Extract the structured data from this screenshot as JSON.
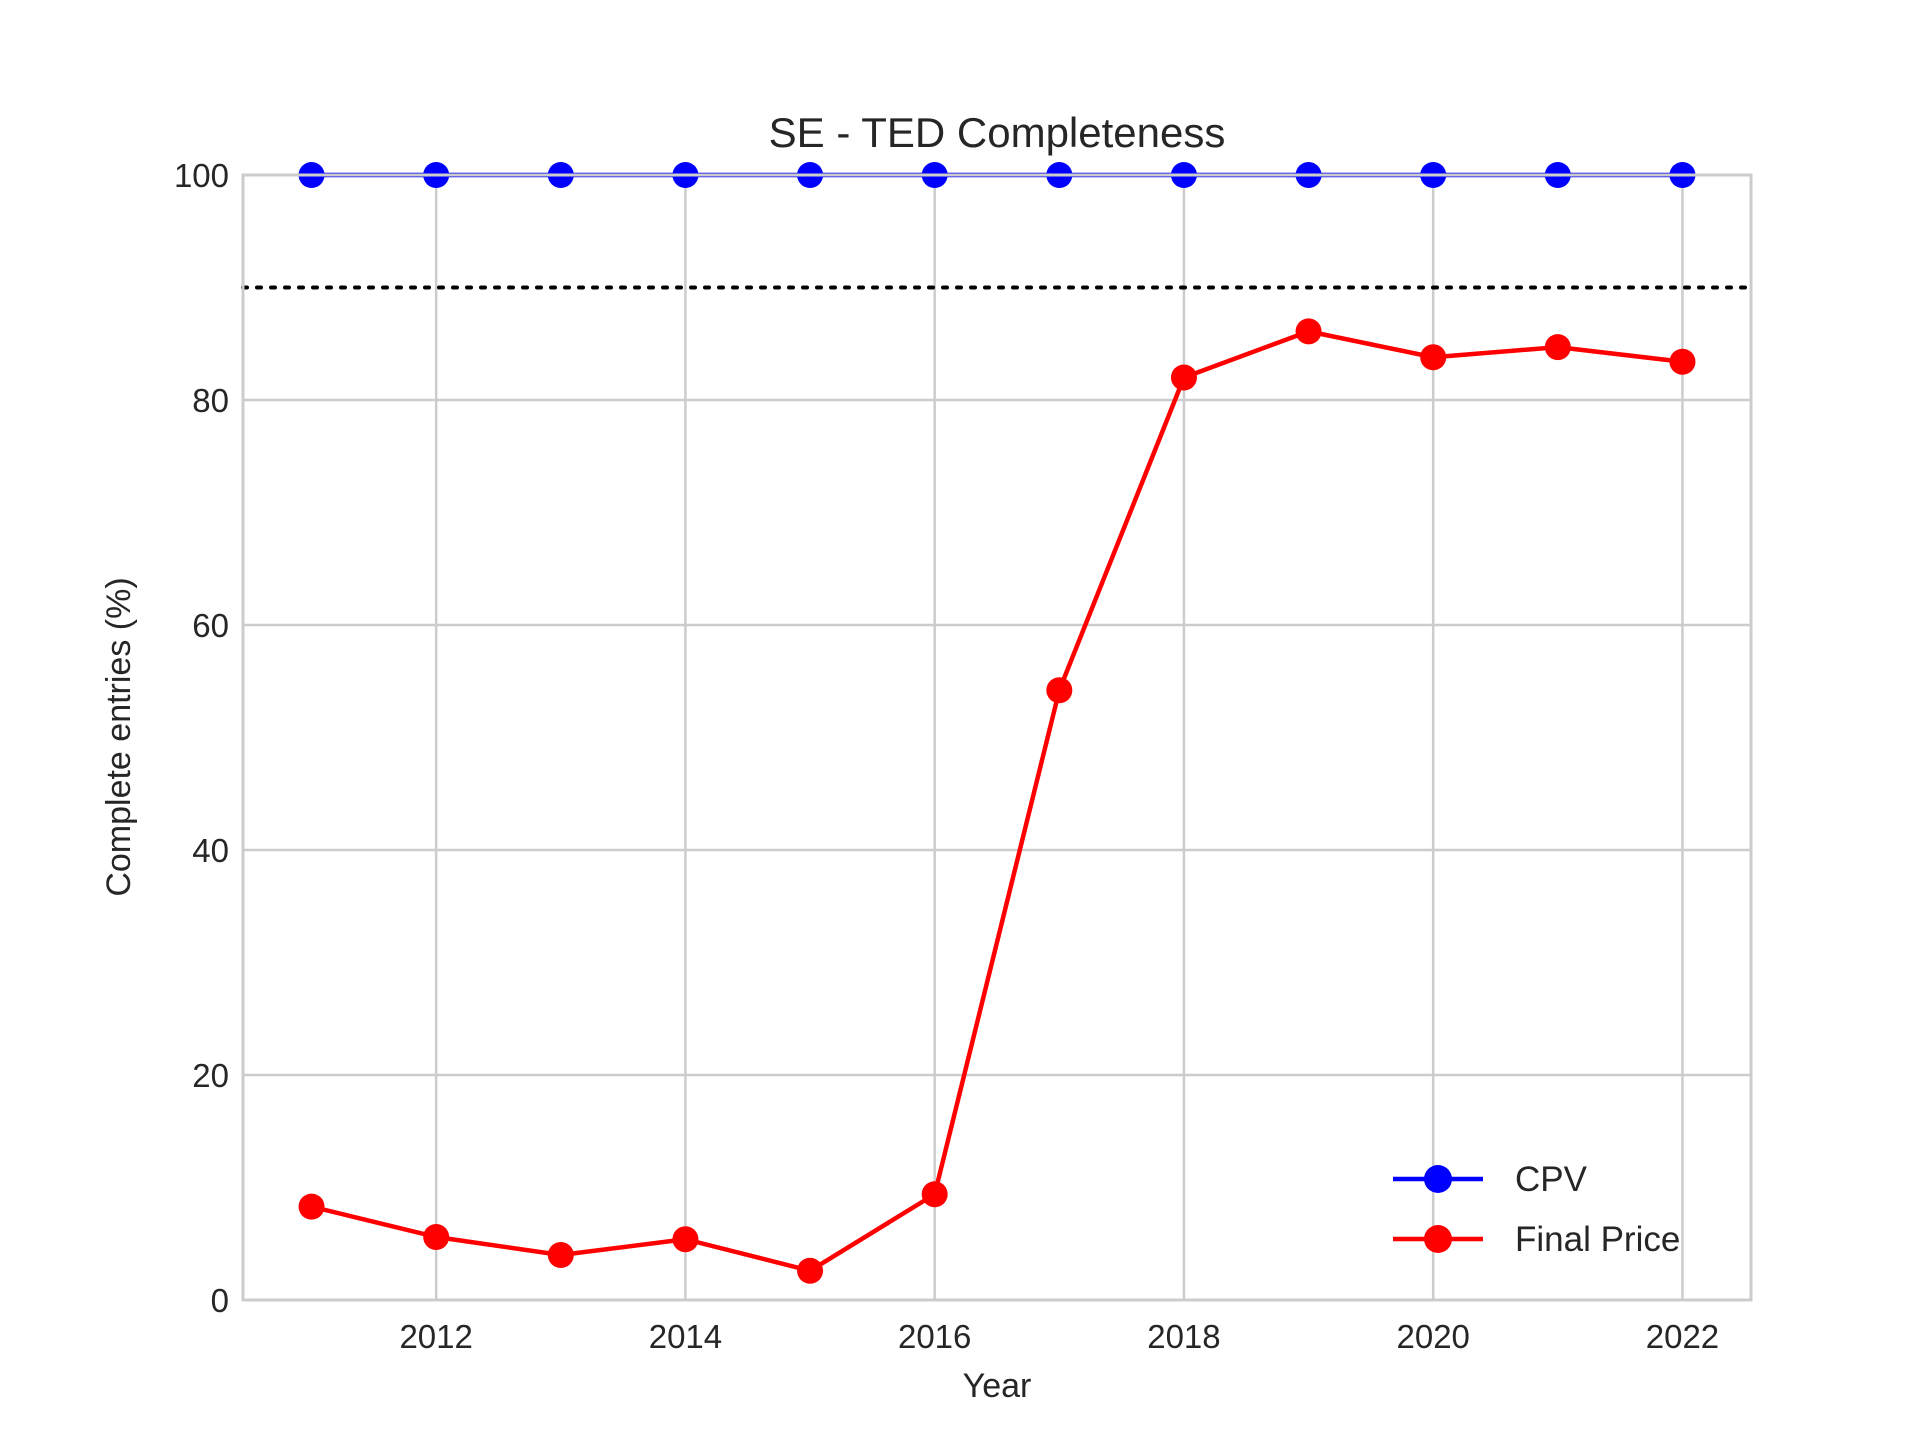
{
  "chart_data": {
    "type": "line",
    "title": "SE - TED Completeness",
    "xlabel": "Year",
    "ylabel": "Complete entries (%)",
    "x": [
      2011,
      2012,
      2013,
      2014,
      2015,
      2016,
      2017,
      2018,
      2019,
      2020,
      2021,
      2022
    ],
    "xlim": [
      2010.45,
      2022.55
    ],
    "ylim": [
      0,
      100
    ],
    "x_ticks": [
      2012,
      2014,
      2016,
      2018,
      2020,
      2022
    ],
    "y_ticks": [
      0,
      20,
      40,
      60,
      80,
      100
    ],
    "grid": true,
    "legend_position": "lower-right",
    "reference_line": {
      "y": 90,
      "style": "dotted",
      "color": "#000000"
    },
    "series": [
      {
        "name": "CPV",
        "color": "#0000ff",
        "marker": "circle",
        "values": [
          100,
          100,
          100,
          100,
          100,
          100,
          100,
          100,
          100,
          100,
          100,
          100
        ]
      },
      {
        "name": "Final Price",
        "color": "#ff0000",
        "marker": "circle",
        "values": [
          8.3,
          5.6,
          4.0,
          5.4,
          2.6,
          9.4,
          54.2,
          82.0,
          86.1,
          83.8,
          84.7,
          83.4
        ]
      }
    ]
  }
}
